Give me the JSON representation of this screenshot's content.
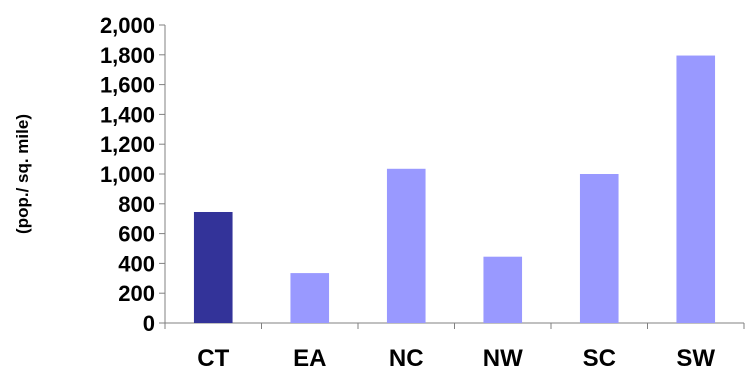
{
  "chart_data": {
    "type": "bar",
    "title": "",
    "xlabel": "",
    "ylabel": "(pop./ sq. mile)",
    "categories": [
      "CT",
      "EA",
      "NC",
      "NW",
      "SC",
      "SW"
    ],
    "values": [
      745,
      335,
      1035,
      445,
      1000,
      1795
    ],
    "bar_colors": [
      "#333399",
      "#9999FF",
      "#9999FF",
      "#9999FF",
      "#9999FF",
      "#9999FF"
    ],
    "ylim": [
      0,
      2000
    ],
    "yticks": [
      0,
      200,
      400,
      600,
      800,
      1000,
      1200,
      1400,
      1600,
      1800,
      2000
    ],
    "ytick_labels": [
      "0",
      "200",
      "400",
      "600",
      "800",
      "1,000",
      "1,200",
      "1,400",
      "1,600",
      "1,800",
      "2,000"
    ],
    "grid": false,
    "legend": "none"
  }
}
